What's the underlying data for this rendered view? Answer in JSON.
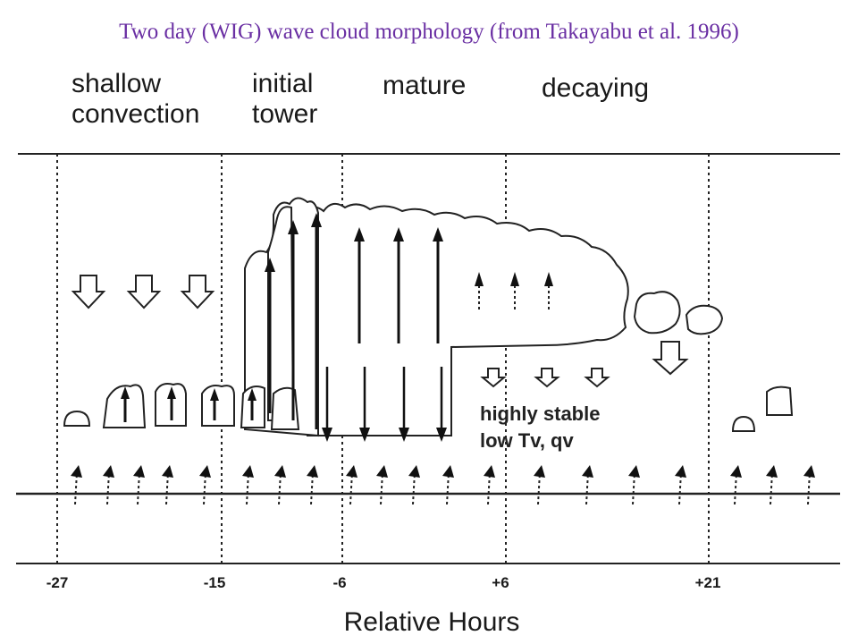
{
  "title": "Two day (WIG) wave cloud morphology (from Takayabu et al. 1996)",
  "stages": {
    "shallow": [
      "shallow",
      "convection"
    ],
    "initial": [
      "initial",
      "tower"
    ],
    "mature": "mature",
    "decaying": "decaying"
  },
  "axis": {
    "label": "Relative  Hours",
    "ticks": [
      "-27",
      "-15",
      "-6",
      "+6",
      "+21"
    ]
  },
  "annotation": [
    "highly stable",
    "low Tv, qv"
  ]
}
